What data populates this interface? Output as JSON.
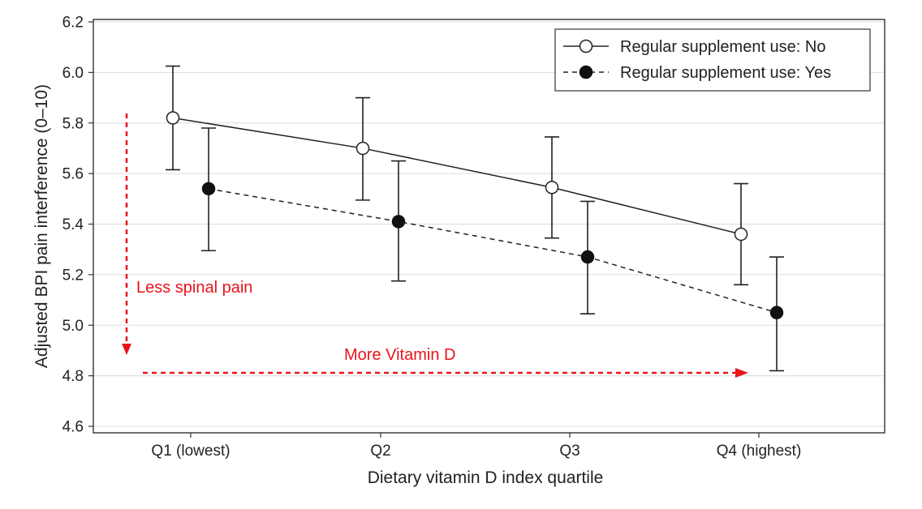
{
  "chart_data": {
    "type": "line",
    "title": "",
    "xlabel": "Dietary vitamin D index quartile",
    "ylabel": "Adjusted BPI pain interference (0–10)",
    "categories": [
      "Q1 (lowest)",
      "Q2",
      "Q3",
      "Q4 (highest)"
    ],
    "ylim": [
      4.6,
      6.2
    ],
    "yticks": [
      "4.6",
      "4.8",
      "5.0",
      "5.2",
      "5.4",
      "5.6",
      "5.8",
      "6.0",
      "6.2"
    ],
    "grid": "horizontal",
    "legend_position": "top-right",
    "series": [
      {
        "name": "Regular supplement use: No",
        "marker": "open-circle",
        "line_style": "solid",
        "values": [
          5.82,
          5.7,
          5.545,
          5.36
        ],
        "ci_lower": [
          5.615,
          5.495,
          5.345,
          5.16
        ],
        "ci_upper": [
          6.025,
          5.9,
          5.745,
          5.56
        ]
      },
      {
        "name": "Regular supplement use: Yes",
        "marker": "filled-circle",
        "line_style": "dashed",
        "values": [
          5.54,
          5.41,
          5.27,
          5.05
        ],
        "ci_lower": [
          5.295,
          5.175,
          5.045,
          4.82
        ],
        "ci_upper": [
          5.78,
          5.65,
          5.49,
          5.27
        ]
      }
    ],
    "annotations": [
      {
        "text": "Less spinal pain",
        "color": "#e8141c",
        "arrow": "down"
      },
      {
        "text": "More Vitamin D",
        "color": "#e8141c",
        "arrow": "right"
      }
    ]
  }
}
